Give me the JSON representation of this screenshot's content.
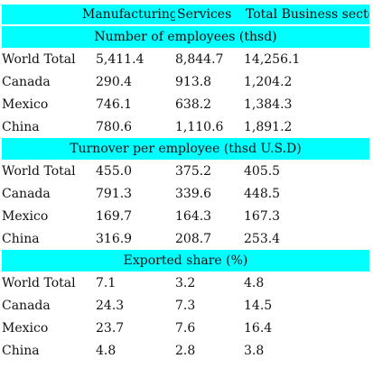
{
  "columns": {
    "manufacturing": "Manufacturing",
    "services": "Services",
    "total": "Total Business sector"
  },
  "sections": [
    {
      "title": "Number of employees (thsd)",
      "rows": [
        {
          "label": "World Total",
          "values": [
            "5,411.4",
            "8,844.7",
            "14,256.1"
          ]
        },
        {
          "label": "Canada",
          "values": [
            "290.4",
            "913.8",
            "1,204.2"
          ]
        },
        {
          "label": "Mexico",
          "values": [
            "746.1",
            "638.2",
            "1,384.3"
          ]
        },
        {
          "label": "China",
          "values": [
            "780.6",
            "1,110.6",
            "1,891.2"
          ]
        }
      ]
    },
    {
      "title": "Turnover per employee (thsd U.S.D)",
      "rows": [
        {
          "label": "World Total",
          "values": [
            "455.0",
            "375.2",
            "405.5"
          ]
        },
        {
          "label": "Canada",
          "values": [
            "791.3",
            "339.6",
            "448.5"
          ]
        },
        {
          "label": "Mexico",
          "values": [
            "169.7",
            "164.3",
            "167.3"
          ]
        },
        {
          "label": "China",
          "values": [
            "316.9",
            "208.7",
            "253.4"
          ]
        }
      ]
    },
    {
      "title": "Exported share (%)",
      "rows": [
        {
          "label": "World Total",
          "values": [
            "7.1",
            "3.2",
            "4.8"
          ]
        },
        {
          "label": "Canada",
          "values": [
            "24.3",
            "7.3",
            "14.5"
          ]
        },
        {
          "label": "Mexico",
          "values": [
            "23.7",
            "7.6",
            "16.4"
          ]
        },
        {
          "label": "China",
          "values": [
            "4.8",
            "2.8",
            "3.8"
          ]
        }
      ]
    }
  ],
  "colors": {
    "band": "#00ffff",
    "text": "#111111",
    "background": "#ffffff"
  }
}
